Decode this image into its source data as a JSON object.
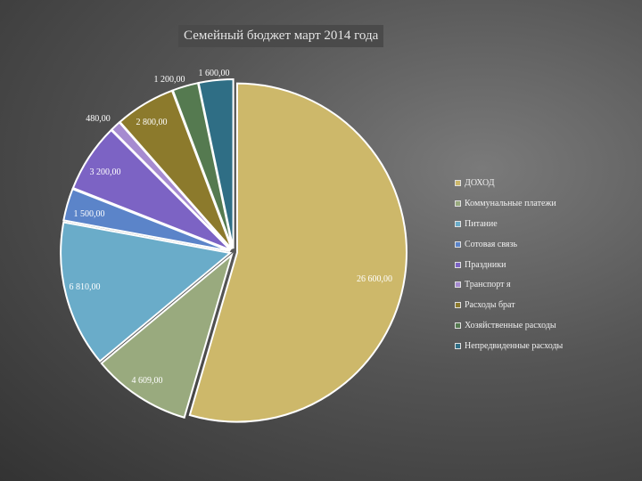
{
  "chart_data": {
    "type": "pie",
    "title": "Семейный бюджет март 2014 года",
    "categories": [
      "ДОХОД",
      "Коммунальные платежи",
      "Питание",
      "Сотовая связь",
      "Праздники",
      "Транспорт я",
      "Расходы брат",
      "Хозяйственные расходы",
      "Непредвиденные расходы"
    ],
    "values": [
      26600,
      4609,
      6810,
      1500,
      3200,
      480,
      2800,
      1200,
      1600
    ],
    "data_labels": [
      "26 600,00",
      "4 609,00",
      "6 810,00",
      "1 500,00",
      "3 200,00",
      "480,00",
      "2 800,00",
      "1 200,00",
      "1 600,00"
    ],
    "colors": [
      "#cdb86a",
      "#99aa7e",
      "#6aacc9",
      "#5b84c9",
      "#7c63c4",
      "#a68bd0",
      "#8c7a2c",
      "#557a50",
      "#2f6e85"
    ],
    "legend_position": "right",
    "start_angle_deg": 0,
    "direction": "clockwise",
    "exploded": true
  }
}
